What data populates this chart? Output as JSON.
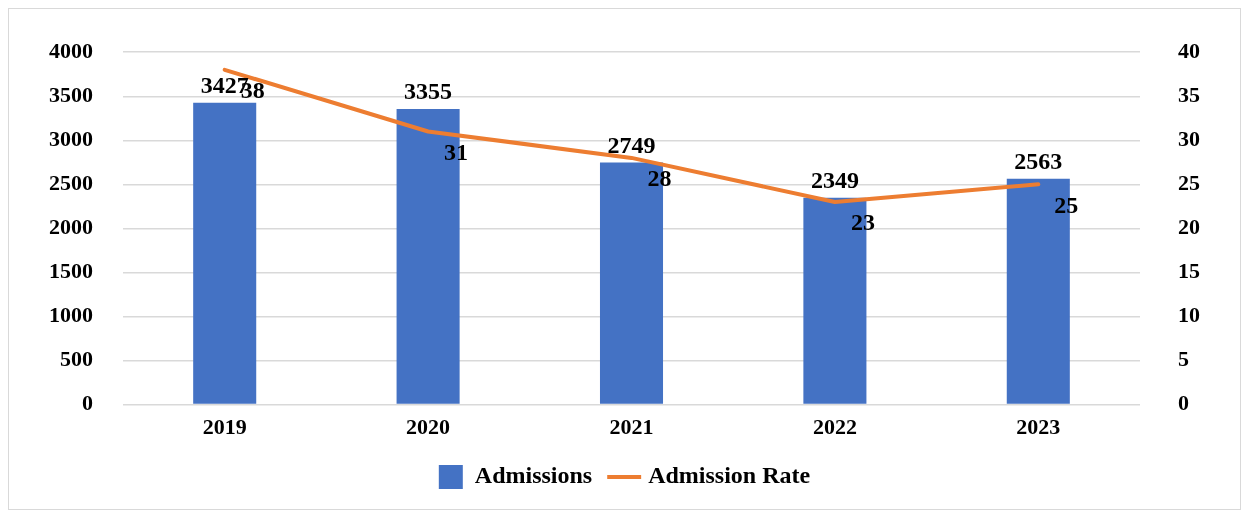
{
  "chart_data": {
    "type": "bar",
    "categories": [
      "2019",
      "2020",
      "2021",
      "2022",
      "2023"
    ],
    "series": [
      {
        "name": "Admissions",
        "color": "#4472c4",
        "values": [
          3427,
          3355,
          2749,
          2349,
          2563
        ]
      },
      {
        "name": "Admission Rate",
        "type": "line",
        "axis": "y2",
        "color": "#ed7d31",
        "values": [
          38,
          31,
          28,
          23,
          25
        ]
      }
    ],
    "ylim": [
      0,
      4000
    ],
    "yticks": [
      0,
      500,
      1000,
      1500,
      2000,
      2500,
      3000,
      3500,
      4000
    ],
    "y2lim": [
      0,
      40
    ],
    "y2ticks": [
      0,
      5,
      10,
      15,
      20,
      25,
      30,
      35,
      40
    ],
    "grid": "y",
    "legend": "bottom",
    "data_labels": true,
    "marker": "none",
    "line_style": "solid"
  }
}
